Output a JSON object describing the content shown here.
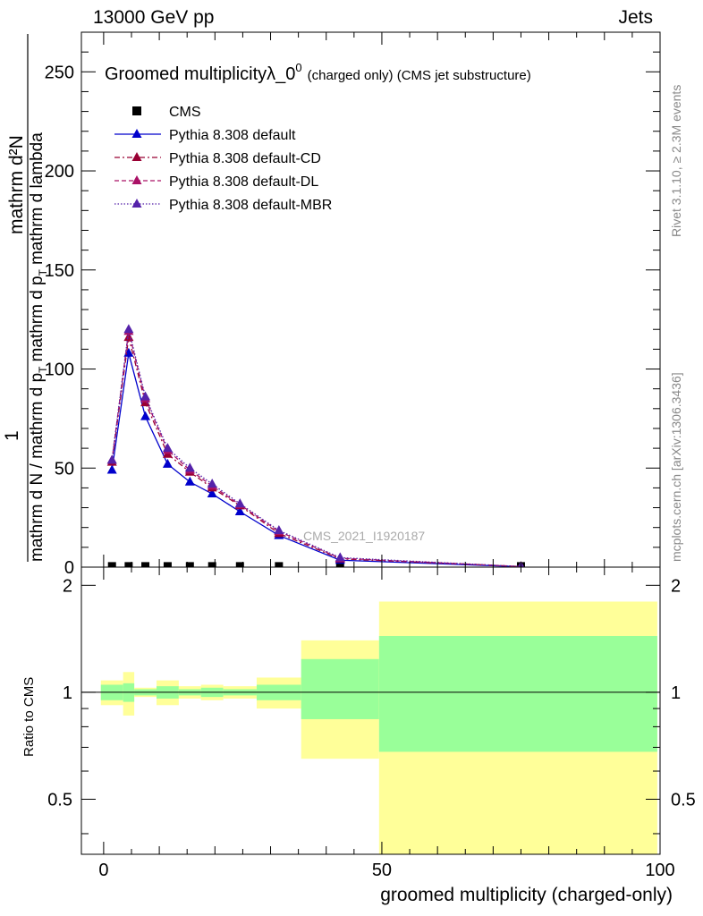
{
  "header": {
    "left": "13000 GeV pp",
    "right": "Jets"
  },
  "side_labels": {
    "rivet": "Rivet 3.1.10, ≥ 2.3M events",
    "mcplots": "mcplots.cern.ch [arXiv:1306.3436]"
  },
  "chart_data": [
    {
      "type": "line",
      "title": "Groomed multiplicityλ_0",
      "title_sup": "0",
      "title_suffix": "(charged only) (CMS jet substructure)",
      "watermark": "CMS_2021_I1920187",
      "ylabel_top": "mathrm d²N",
      "ylabel_main": "mathrm d N / mathrm d p",
      "ylabel_one": "1",
      "ylabel_den_1": "mathrm d p",
      "ylabel_den_2": "mathrm d lambda",
      "ylabel_sub": "T",
      "ylim": [
        0,
        270
      ],
      "xlim": [
        -4,
        100
      ],
      "yticks": [
        0,
        50,
        100,
        150,
        200,
        250
      ],
      "legend_position": "top-left",
      "series": [
        {
          "name": "CMS",
          "style": "data",
          "color": "#000000",
          "marker": "square",
          "x": [
            1.5,
            4.5,
            7.5,
            11.5,
            15.5,
            19.5,
            24.5,
            31.5,
            42.5,
            75
          ],
          "y": [
            0.5,
            0.5,
            0.5,
            0.5,
            0.5,
            0.5,
            0.5,
            0.5,
            0.5,
            0.5
          ]
        },
        {
          "name": "Pythia 8.308 default",
          "style": "solid",
          "color": "#0000cc",
          "marker": "triangle",
          "x": [
            1.5,
            4.5,
            7.5,
            11.5,
            15.5,
            19.5,
            24.5,
            31.5,
            42.5,
            75
          ],
          "y": [
            49,
            108,
            76,
            52,
            43,
            37,
            28,
            16,
            3.5,
            0.2
          ]
        },
        {
          "name": "Pythia 8.308 default-CD",
          "style": "dashdot",
          "color": "#990033",
          "marker": "triangle",
          "x": [
            1.5,
            4.5,
            7.5,
            11.5,
            15.5,
            19.5,
            24.5,
            31.5,
            42.5,
            75
          ],
          "y": [
            53,
            116,
            83,
            57,
            48,
            40,
            31,
            17,
            4.2,
            0.3
          ]
        },
        {
          "name": "Pythia 8.308 default-DL",
          "style": "dashed",
          "color": "#aa1166",
          "marker": "triangle",
          "x": [
            1.5,
            4.5,
            7.5,
            11.5,
            15.5,
            19.5,
            24.5,
            31.5,
            42.5,
            75
          ],
          "y": [
            54,
            119,
            85,
            59,
            49,
            41,
            31.5,
            18,
            4.5,
            0.3
          ]
        },
        {
          "name": "Pythia 8.308 default-MBR",
          "style": "dotted",
          "color": "#5522aa",
          "marker": "triangle",
          "x": [
            1.5,
            4.5,
            7.5,
            11.5,
            15.5,
            19.5,
            24.5,
            31.5,
            42.5,
            75
          ],
          "y": [
            54,
            120,
            86,
            60,
            50,
            42,
            32,
            18.5,
            4.8,
            0.3
          ]
        }
      ]
    },
    {
      "type": "area",
      "ylabel": "Ratio to CMS",
      "xlabel": "groomed multiplicity (charged-only)",
      "xlim": [
        -4,
        100
      ],
      "ylim": [
        0.35,
        2.25
      ],
      "yticks": [
        0.5,
        1,
        2
      ],
      "ytick_labels": [
        "0.5",
        "1",
        "2"
      ],
      "xticks": [
        0,
        50,
        100
      ],
      "xtick_labels": [
        "0",
        "50",
        "100"
      ],
      "band_colors": {
        "outer": "#ffff99",
        "inner": "#99ff99",
        "line": "#000000"
      },
      "bins": [
        {
          "lo": -0.5,
          "hi": 3.5,
          "outer": [
            0.92,
            1.08
          ],
          "inner": [
            0.95,
            1.05
          ]
        },
        {
          "lo": 3.5,
          "hi": 5.5,
          "outer": [
            0.86,
            1.14
          ],
          "inner": [
            0.94,
            1.06
          ]
        },
        {
          "lo": 5.5,
          "hi": 9.5,
          "outer": [
            0.97,
            1.03
          ],
          "inner": [
            0.98,
            1.02
          ]
        },
        {
          "lo": 9.5,
          "hi": 13.5,
          "outer": [
            0.92,
            1.08
          ],
          "inner": [
            0.96,
            1.04
          ]
        },
        {
          "lo": 13.5,
          "hi": 17.5,
          "outer": [
            0.96,
            1.04
          ],
          "inner": [
            0.98,
            1.02
          ]
        },
        {
          "lo": 17.5,
          "hi": 21.5,
          "outer": [
            0.95,
            1.05
          ],
          "inner": [
            0.97,
            1.03
          ]
        },
        {
          "lo": 21.5,
          "hi": 27.5,
          "outer": [
            0.96,
            1.04
          ],
          "inner": [
            0.98,
            1.02
          ]
        },
        {
          "lo": 27.5,
          "hi": 35.5,
          "outer": [
            0.9,
            1.1
          ],
          "inner": [
            0.95,
            1.05
          ]
        },
        {
          "lo": 35.5,
          "hi": 49.5,
          "outer": [
            0.65,
            1.4
          ],
          "inner": [
            0.84,
            1.24
          ]
        },
        {
          "lo": 49.5,
          "hi": 99.5,
          "outer": [
            0.3,
            1.8
          ],
          "inner": [
            0.68,
            1.44
          ]
        }
      ]
    }
  ]
}
